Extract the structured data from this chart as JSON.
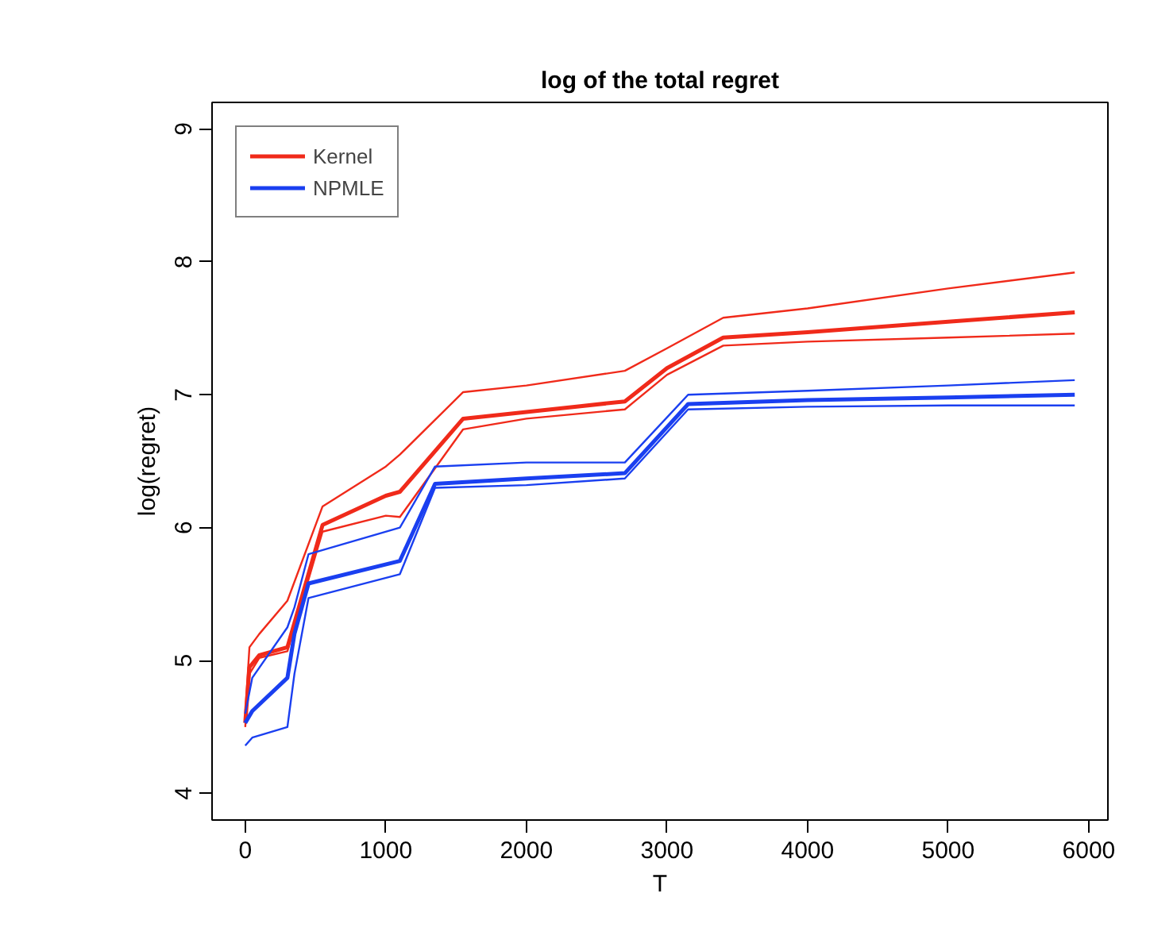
{
  "chart_data": {
    "type": "line",
    "title": "log of the total regret",
    "xlabel": "T",
    "ylabel": "log(regret)",
    "xlim": [
      -236,
      6136
    ],
    "ylim": [
      3.8,
      9.2
    ],
    "xticks": [
      0,
      1000,
      2000,
      3000,
      4000,
      5000,
      6000
    ],
    "yticks": [
      4,
      5,
      6,
      7,
      8,
      9
    ],
    "grid": false,
    "legend": "top left",
    "marker": "none",
    "line_style": "solid",
    "series": [
      {
        "name": "Kernel",
        "color": "#f02a1a",
        "x": [
          0,
          30,
          100,
          300,
          550,
          1000,
          1100,
          1550,
          2000,
          2700,
          3000,
          3400,
          4000,
          5000,
          5900
        ],
        "values": [
          4.53,
          4.95,
          5.04,
          5.1,
          6.02,
          6.24,
          6.27,
          6.82,
          6.87,
          6.95,
          7.2,
          7.43,
          7.47,
          7.55,
          7.62
        ]
      },
      {
        "color": "#f02a1a",
        "x": [
          0,
          30,
          100,
          300,
          550,
          1000,
          1100,
          1550,
          2000,
          2700,
          3000,
          3400,
          4000,
          5000,
          5900
        ],
        "values": [
          4.6,
          5.1,
          5.2,
          5.45,
          6.16,
          6.46,
          6.55,
          7.02,
          7.07,
          7.18,
          7.35,
          7.58,
          7.65,
          7.8,
          7.92
        ]
      },
      {
        "color": "#f02a1a",
        "x": [
          0,
          30,
          100,
          300,
          550,
          1000,
          1100,
          1550,
          2000,
          2700,
          3000,
          3400,
          4000,
          5000,
          5900
        ],
        "values": [
          4.5,
          4.9,
          5.02,
          5.07,
          5.97,
          6.09,
          6.08,
          6.74,
          6.82,
          6.89,
          7.15,
          7.37,
          7.4,
          7.43,
          7.46
        ]
      },
      {
        "name": "NPMLE",
        "color": "#1a3ff0",
        "x": [
          0,
          50,
          300,
          350,
          450,
          1100,
          1350,
          2000,
          2700,
          3150,
          4000,
          5000,
          5900
        ],
        "values": [
          4.53,
          4.62,
          4.87,
          5.2,
          5.58,
          5.75,
          6.33,
          6.37,
          6.41,
          6.93,
          6.96,
          6.98,
          7.0
        ]
      },
      {
        "color": "#1a3ff0",
        "x": [
          0,
          50,
          300,
          350,
          450,
          1100,
          1350,
          2000,
          2700,
          3150,
          4000,
          5000,
          5900
        ],
        "values": [
          4.6,
          4.87,
          5.25,
          5.4,
          5.8,
          6.0,
          6.46,
          6.49,
          6.49,
          7.0,
          7.03,
          7.07,
          7.11
        ]
      },
      {
        "color": "#1a3ff0",
        "x": [
          0,
          50,
          300,
          350,
          450,
          1100,
          1350,
          2000,
          2700,
          3150,
          4000,
          5000,
          5900
        ],
        "values": [
          4.36,
          4.42,
          4.5,
          4.9,
          5.47,
          5.65,
          6.3,
          6.32,
          6.37,
          6.89,
          6.91,
          6.92,
          6.92
        ]
      }
    ]
  }
}
